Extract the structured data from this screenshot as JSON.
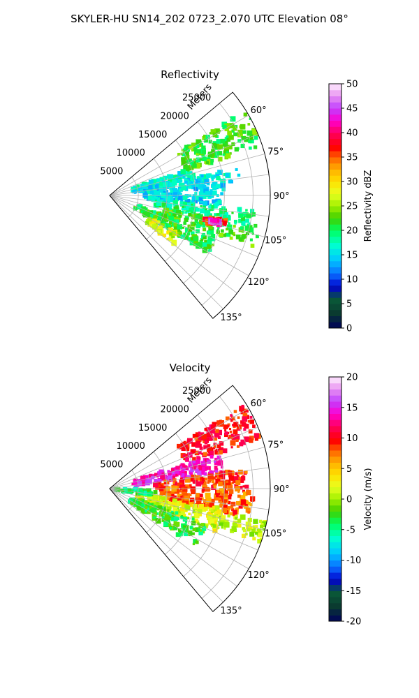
{
  "figure": {
    "suptitle": "SKYLER-HU  SN14_202  0723_2.070 UTC Elevation 08°"
  },
  "chart_data": [
    {
      "type": "heatmap",
      "projection": "polar-sector",
      "title": "Reflectivity",
      "range_axis_label": "Meters",
      "range_ticks": [
        5000,
        10000,
        15000,
        20000,
        25000
      ],
      "range_tick_labels": [
        "5000",
        "10000",
        "15000",
        "20000",
        "25000"
      ],
      "range_max": 28000,
      "azimuth_range": [
        50,
        140
      ],
      "azimuth_ticks": [
        60,
        75,
        90,
        105,
        120,
        135
      ],
      "azimuth_tick_labels": [
        "60°",
        "75°",
        "90°",
        "105°",
        "120°",
        "135°"
      ],
      "grid": true,
      "colorbar": {
        "label": "Reflectivity dBZ",
        "min": 0,
        "max": 50,
        "ticks": [
          0,
          5,
          10,
          15,
          20,
          25,
          30,
          35,
          40,
          45,
          50
        ],
        "tick_labels": [
          "0",
          "5",
          "10",
          "15",
          "20",
          "25",
          "30",
          "35",
          "40",
          "45",
          "50"
        ]
      },
      "echo_regions": [
        {
          "az": [
            58,
            72
          ],
          "r": [
            14000,
            28000
          ],
          "value": 22
        },
        {
          "az": [
            72,
            80
          ],
          "r": [
            4000,
            16000
          ],
          "value": 17
        },
        {
          "az": [
            78,
            84
          ],
          "r": [
            4000,
            23000
          ],
          "value": 16
        },
        {
          "az": [
            84,
            96
          ],
          "r": [
            6000,
            20000
          ],
          "value": 15
        },
        {
          "az": [
            96,
            103
          ],
          "r": [
            8000,
            26000
          ],
          "value": 19
        },
        {
          "az": [
            103,
            110
          ],
          "r": [
            10000,
            27000
          ],
          "value": 22
        },
        {
          "az": [
            110,
            120
          ],
          "r": [
            5000,
            20000
          ],
          "value": 21
        },
        {
          "az": [
            118,
            127
          ],
          "r": [
            8000,
            14000
          ],
          "value": 27
        },
        {
          "az": [
            102,
            106
          ],
          "r": [
            17000,
            21000
          ],
          "value": 36
        },
        {
          "az": [
            103,
            105
          ],
          "r": [
            18000,
            20000
          ],
          "value": 44
        }
      ]
    },
    {
      "type": "heatmap",
      "projection": "polar-sector",
      "title": "Velocity",
      "range_axis_label": "Meters",
      "range_ticks": [
        5000,
        10000,
        15000,
        20000,
        25000
      ],
      "range_tick_labels": [
        "5000",
        "10000",
        "15000",
        "20000",
        "25000"
      ],
      "range_max": 28000,
      "azimuth_range": [
        50,
        140
      ],
      "azimuth_ticks": [
        60,
        75,
        90,
        105,
        120,
        135
      ],
      "azimuth_tick_labels": [
        "60°",
        "75°",
        "90°",
        "105°",
        "120°",
        "135°"
      ],
      "grid": true,
      "colorbar": {
        "label": "Velocity (m/s)",
        "min": -20,
        "max": 20,
        "ticks": [
          -20,
          -15,
          -10,
          -5,
          0,
          5,
          10,
          15,
          20
        ],
        "tick_labels": [
          "-20",
          "-15",
          "-10",
          "-5",
          "0",
          "5",
          "10",
          "15",
          "20"
        ]
      },
      "echo_regions": [
        {
          "az": [
            58,
            72
          ],
          "r": [
            14000,
            28000
          ],
          "value": 10
        },
        {
          "az": [
            72,
            82
          ],
          "r": [
            4000,
            20000
          ],
          "value": 14
        },
        {
          "az": [
            82,
            90
          ],
          "r": [
            8000,
            24000
          ],
          "value": 9
        },
        {
          "az": [
            90,
            102
          ],
          "r": [
            9000,
            25000
          ],
          "value": 8
        },
        {
          "az": [
            100,
            112
          ],
          "r": [
            5000,
            20000
          ],
          "value": 2
        },
        {
          "az": [
            102,
            110
          ],
          "r": [
            18000,
            28000
          ],
          "value": 1
        },
        {
          "az": [
            110,
            124
          ],
          "r": [
            4000,
            18000
          ],
          "value": -3
        },
        {
          "az": [
            92,
            100
          ],
          "r": [
            1000,
            8000
          ],
          "value": -4
        }
      ]
    }
  ]
}
